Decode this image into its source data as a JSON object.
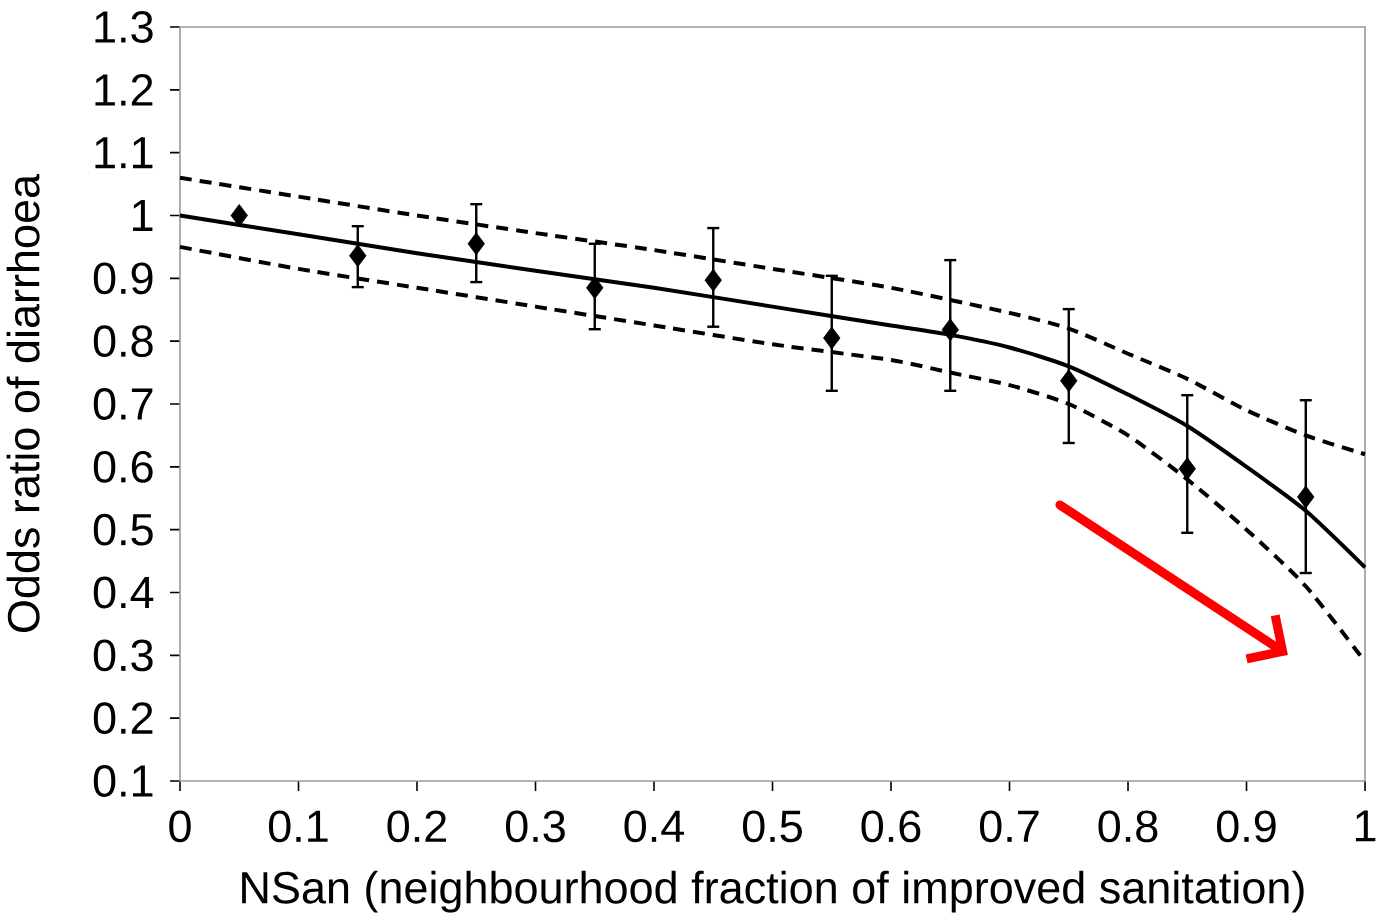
{
  "chart_data": {
    "type": "scatter",
    "xlabel": "NSan (neighbourhood fraction of improved sanitation)",
    "ylabel": "Odds ratio of diarrhoea",
    "xlim": [
      0,
      1
    ],
    "ylim": [
      0.1,
      1.3
    ],
    "xticks": [
      0,
      0.1,
      0.2,
      0.3,
      0.4,
      0.5,
      0.6,
      0.7,
      0.8,
      0.9,
      1
    ],
    "yticks": [
      0.1,
      0.2,
      0.3,
      0.4,
      0.5,
      0.6,
      0.7,
      0.8,
      0.9,
      1,
      1.1,
      1.2,
      1.3
    ],
    "series": [
      {
        "type": "line",
        "color": "#000000",
        "line_style": "solid",
        "marker": "none",
        "x": [
          0,
          0.1,
          0.2,
          0.3,
          0.4,
          0.5,
          0.6,
          0.65,
          0.7,
          0.75,
          0.8,
          0.85,
          0.9,
          0.95,
          1
        ],
        "values": [
          1.0,
          0.97,
          0.94,
          0.912,
          0.885,
          0.855,
          0.825,
          0.81,
          0.79,
          0.76,
          0.715,
          0.665,
          0.6,
          0.53,
          0.44
        ]
      },
      {
        "type": "line",
        "color": "#000000",
        "line_style": "dashed",
        "marker": "none",
        "x": [
          0,
          0.1,
          0.2,
          0.3,
          0.4,
          0.5,
          0.6,
          0.7,
          0.75,
          0.8,
          0.85,
          0.9,
          0.95,
          1
        ],
        "values": [
          1.06,
          1.03,
          1.0,
          0.972,
          0.945,
          0.915,
          0.885,
          0.845,
          0.82,
          0.78,
          0.74,
          0.69,
          0.65,
          0.62
        ]
      },
      {
        "type": "line",
        "color": "#000000",
        "line_style": "dashed",
        "marker": "none",
        "x": [
          0,
          0.1,
          0.2,
          0.3,
          0.4,
          0.5,
          0.6,
          0.65,
          0.7,
          0.75,
          0.8,
          0.85,
          0.9,
          0.95,
          1
        ],
        "values": [
          0.95,
          0.915,
          0.885,
          0.855,
          0.825,
          0.795,
          0.77,
          0.75,
          0.73,
          0.7,
          0.65,
          0.58,
          0.5,
          0.41,
          0.29
        ]
      },
      {
        "color": "#000000",
        "marker": "diamond",
        "x": [
          0.05,
          0.15,
          0.25,
          0.35,
          0.45,
          0.55,
          0.65,
          0.75,
          0.85,
          0.95
        ],
        "values": [
          1.0,
          0.936,
          0.955,
          0.885,
          0.897,
          0.805,
          0.818,
          0.737,
          0.597,
          0.552
        ],
        "errors": [
          null,
          [
            0.886,
            0.983
          ],
          [
            0.894,
            1.018
          ],
          [
            0.819,
            0.955
          ],
          [
            0.823,
            0.98
          ],
          [
            0.721,
            0.904
          ],
          [
            0.721,
            0.929
          ],
          [
            0.638,
            0.851
          ],
          [
            0.495,
            0.714
          ],
          [
            0.431,
            0.706
          ]
        ]
      }
    ]
  }
}
